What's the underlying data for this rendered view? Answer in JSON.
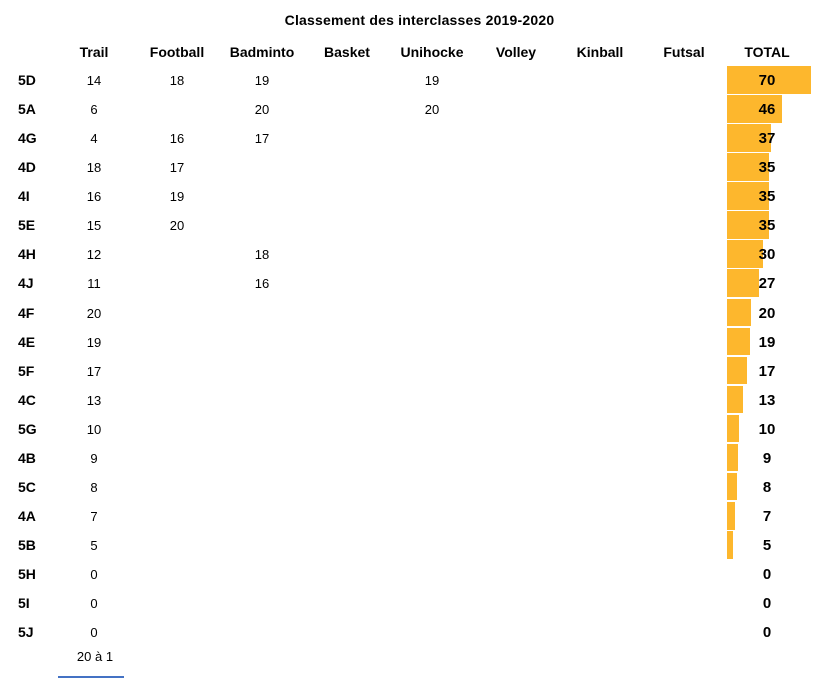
{
  "title": "Classement des interclasses 2019-2020",
  "colors": {
    "bar": "#FDB72D",
    "footer_line": "#4472C4",
    "text": "#000000",
    "background": "#FFFFFF"
  },
  "footer": {
    "scale_note": "20 à 1"
  },
  "table": {
    "columns": [
      "Trail",
      "Football",
      "Badminto",
      "Basket",
      "Unihocke",
      "Volley",
      "Kinball",
      "Futsal",
      "TOTAL"
    ],
    "rows": [
      {
        "label": "5D",
        "values": [
          "14",
          "18",
          "19",
          "",
          "19",
          "",
          "",
          ""
        ],
        "total": "70"
      },
      {
        "label": "5A",
        "values": [
          "6",
          "",
          "20",
          "",
          "20",
          "",
          "",
          ""
        ],
        "total": "46"
      },
      {
        "label": "4G",
        "values": [
          "4",
          "16",
          "17",
          "",
          "",
          "",
          "",
          ""
        ],
        "total": "37"
      },
      {
        "label": "4D",
        "values": [
          "18",
          "17",
          "",
          "",
          "",
          "",
          "",
          ""
        ],
        "total": "35"
      },
      {
        "label": "4I",
        "values": [
          "16",
          "19",
          "",
          "",
          "",
          "",
          "",
          ""
        ],
        "total": "35"
      },
      {
        "label": "5E",
        "values": [
          "15",
          "20",
          "",
          "",
          "",
          "",
          "",
          ""
        ],
        "total": "35"
      },
      {
        "label": "4H",
        "values": [
          "12",
          "",
          "18",
          "",
          "",
          "",
          "",
          ""
        ],
        "total": "30"
      },
      {
        "label": "4J",
        "values": [
          "11",
          "",
          "16",
          "",
          "",
          "",
          "",
          ""
        ],
        "total": "27"
      },
      {
        "label": "4F",
        "values": [
          "20",
          "",
          "",
          "",
          "",
          "",
          "",
          ""
        ],
        "total": "20"
      },
      {
        "label": "4E",
        "values": [
          "19",
          "",
          "",
          "",
          "",
          "",
          "",
          ""
        ],
        "total": "19"
      },
      {
        "label": "5F",
        "values": [
          "17",
          "",
          "",
          "",
          "",
          "",
          "",
          ""
        ],
        "total": "17"
      },
      {
        "label": "4C",
        "values": [
          "13",
          "",
          "",
          "",
          "",
          "",
          "",
          ""
        ],
        "total": "13"
      },
      {
        "label": "5G",
        "values": [
          "10",
          "",
          "",
          "",
          "",
          "",
          "",
          ""
        ],
        "total": "10"
      },
      {
        "label": "4B",
        "values": [
          "9",
          "",
          "",
          "",
          "",
          "",
          "",
          ""
        ],
        "total": "9"
      },
      {
        "label": "5C",
        "values": [
          "8",
          "",
          "",
          "",
          "",
          "",
          "",
          ""
        ],
        "total": "8"
      },
      {
        "label": "4A",
        "values": [
          "7",
          "",
          "",
          "",
          "",
          "",
          "",
          ""
        ],
        "total": "7"
      },
      {
        "label": "5B",
        "values": [
          "5",
          "",
          "",
          "",
          "",
          "",
          "",
          ""
        ],
        "total": "5"
      },
      {
        "label": "5H",
        "values": [
          "0",
          "",
          "",
          "",
          "",
          "",
          "",
          ""
        ],
        "total": "0"
      },
      {
        "label": "5I",
        "values": [
          "0",
          "",
          "",
          "",
          "",
          "",
          "",
          ""
        ],
        "total": "0"
      },
      {
        "label": "5J",
        "values": [
          "0",
          "",
          "",
          "",
          "",
          "",
          "",
          ""
        ],
        "total": "0"
      }
    ]
  },
  "chart_data": {
    "type": "bar",
    "orientation": "horizontal",
    "title": "Classement des interclasses 2019-2020",
    "categories": [
      "5D",
      "5A",
      "4G",
      "4D",
      "4I",
      "5E",
      "4H",
      "4J",
      "4F",
      "4E",
      "5F",
      "4C",
      "5G",
      "4B",
      "5C",
      "4A",
      "5B",
      "5H",
      "5I",
      "5J"
    ],
    "values": [
      70,
      46,
      37,
      35,
      35,
      35,
      30,
      27,
      20,
      19,
      17,
      13,
      10,
      9,
      8,
      7,
      5,
      0,
      0,
      0
    ],
    "series": [
      {
        "name": "Trail",
        "values": [
          14,
          6,
          4,
          18,
          16,
          15,
          12,
          11,
          20,
          19,
          17,
          13,
          10,
          9,
          8,
          7,
          5,
          0,
          0,
          0
        ]
      },
      {
        "name": "Football",
        "values": [
          18,
          null,
          16,
          17,
          19,
          20,
          null,
          null,
          null,
          null,
          null,
          null,
          null,
          null,
          null,
          null,
          null,
          null,
          null,
          null
        ]
      },
      {
        "name": "Badminto",
        "values": [
          19,
          20,
          17,
          null,
          null,
          null,
          18,
          16,
          null,
          null,
          null,
          null,
          null,
          null,
          null,
          null,
          null,
          null,
          null,
          null
        ]
      },
      {
        "name": "Basket",
        "values": [
          null,
          null,
          null,
          null,
          null,
          null,
          null,
          null,
          null,
          null,
          null,
          null,
          null,
          null,
          null,
          null,
          null,
          null,
          null,
          null
        ]
      },
      {
        "name": "Unihocke",
        "values": [
          19,
          20,
          null,
          null,
          null,
          null,
          null,
          null,
          null,
          null,
          null,
          null,
          null,
          null,
          null,
          null,
          null,
          null,
          null,
          null
        ]
      },
      {
        "name": "Volley",
        "values": [
          null,
          null,
          null,
          null,
          null,
          null,
          null,
          null,
          null,
          null,
          null,
          null,
          null,
          null,
          null,
          null,
          null,
          null,
          null,
          null
        ]
      },
      {
        "name": "Kinball",
        "values": [
          null,
          null,
          null,
          null,
          null,
          null,
          null,
          null,
          null,
          null,
          null,
          null,
          null,
          null,
          null,
          null,
          null,
          null,
          null,
          null
        ]
      },
      {
        "name": "Futsal",
        "values": [
          null,
          null,
          null,
          null,
          null,
          null,
          null,
          null,
          null,
          null,
          null,
          null,
          null,
          null,
          null,
          null,
          null,
          null,
          null,
          null
        ]
      }
    ],
    "total_column_label": "TOTAL",
    "scale_note": "20 à 1",
    "bar_color": "#FDB72D",
    "legend": "none",
    "grid": false
  }
}
